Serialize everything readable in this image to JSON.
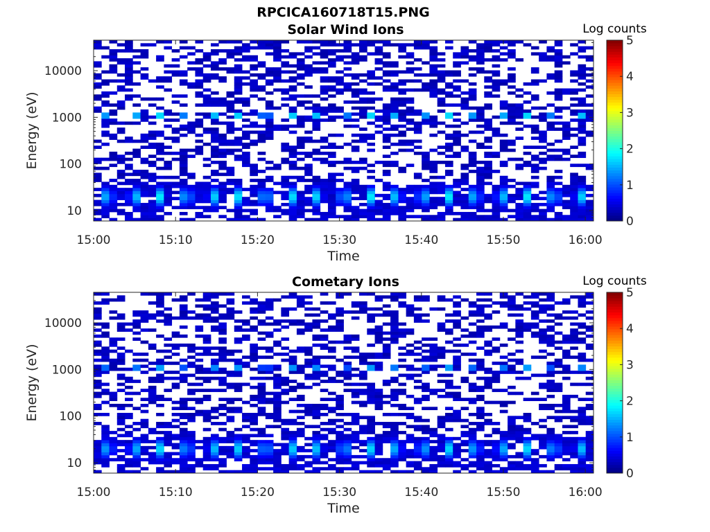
{
  "figure": {
    "title": "RPCICA160718T15.PNG"
  },
  "chart_data": [
    {
      "type": "heatmap",
      "title": "Solar Wind Ions",
      "xlabel": "Time",
      "ylabel": "Energy (eV)",
      "x_range": [
        "15:00",
        "16:01"
      ],
      "x_ticks": [
        "15:00",
        "15:10",
        "15:20",
        "15:30",
        "15:40",
        "15:50",
        "16:00"
      ],
      "y_scale": "log",
      "y_range": [
        6,
        45000
      ],
      "y_ticks": [
        "10",
        "100",
        "1000",
        "10000"
      ],
      "colorbar": {
        "label": "Log counts",
        "min": 0,
        "max": 5,
        "ticks": [
          "0",
          "1",
          "2",
          "3",
          "4",
          "5"
        ],
        "colormap": "jet"
      },
      "pattern": {
        "sweep_period_minutes": 3.2,
        "peak_energy_low_eV": 20,
        "peak_value_low": 1.8,
        "peak_energy_high_eV": 1100,
        "peak_value_high": 1.7,
        "background_value": 0.2
      }
    },
    {
      "type": "heatmap",
      "title": "Cometary Ions",
      "xlabel": "Time",
      "ylabel": "Energy (eV)",
      "x_range": [
        "15:00",
        "16:01"
      ],
      "x_ticks": [
        "15:00",
        "15:10",
        "15:20",
        "15:30",
        "15:40",
        "15:50",
        "16:00"
      ],
      "y_scale": "log",
      "y_range": [
        6,
        45000
      ],
      "y_ticks": [
        "10",
        "100",
        "1000",
        "10000"
      ],
      "colorbar": {
        "label": "Log counts",
        "min": 0,
        "max": 5,
        "ticks": [
          "0",
          "1",
          "2",
          "3",
          "4",
          "5"
        ],
        "colormap": "jet"
      },
      "pattern": {
        "sweep_period_minutes": 3.2,
        "peak_energy_low_eV": 20,
        "peak_value_low": 1.7,
        "peak_energy_high_eV": 1100,
        "peak_value_high": 1.4,
        "background_value": 0.2
      }
    }
  ]
}
